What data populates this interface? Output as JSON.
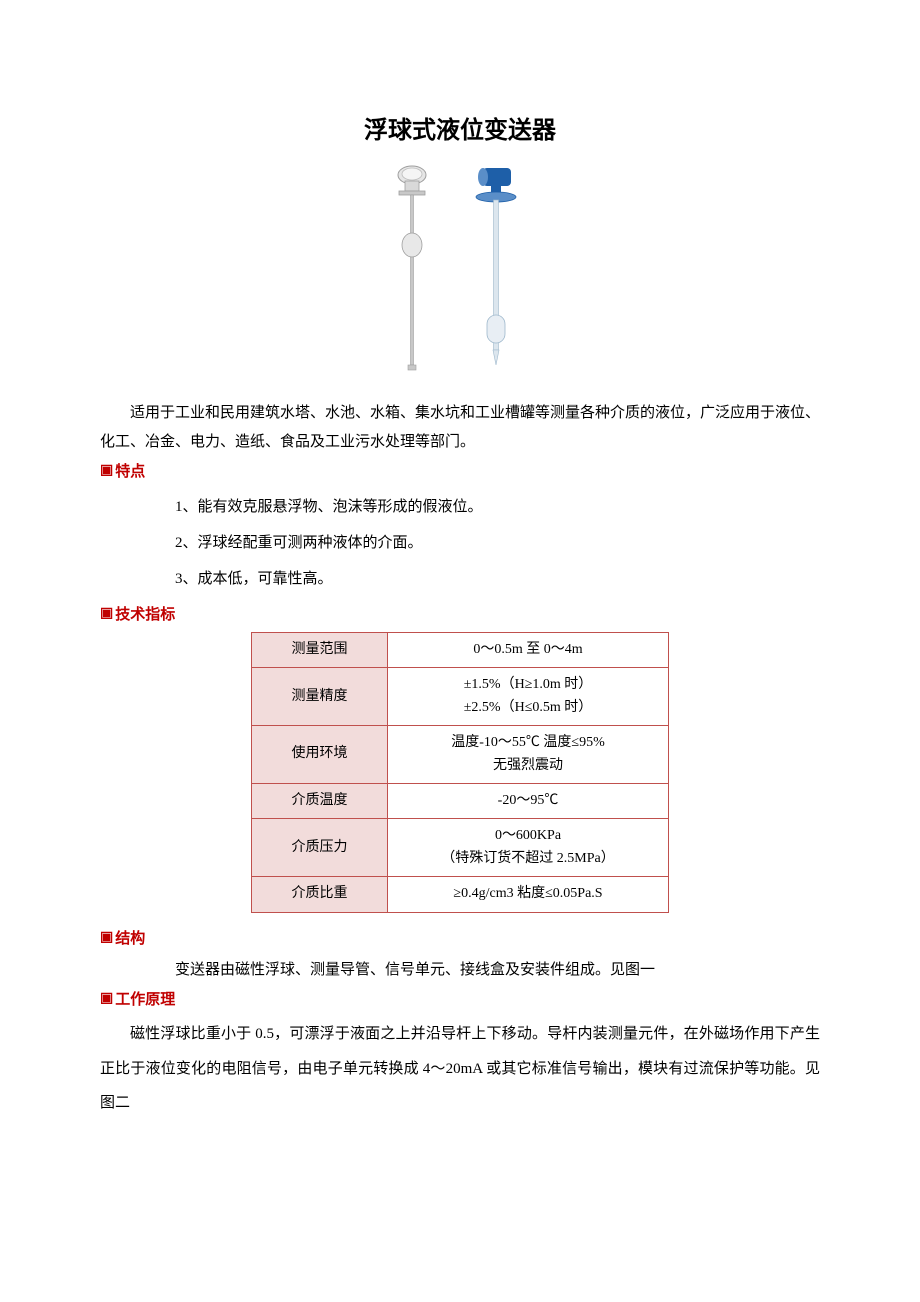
{
  "title": "浮球式液位变送器",
  "intro": "适用于工业和民用建筑水塔、水池、水箱、集水坑和工业槽罐等测量各种介质的液位，广泛应用于液位、化工、冶金、电力、造纸、食品及工业污水处理等部门。",
  "sections": {
    "features": "特点",
    "specs": "技术指标",
    "structure": "结构",
    "principle": "工作原理"
  },
  "marker": "▣",
  "features": [
    "1、能有效克服悬浮物、泡沫等形成的假液位。",
    "2、浮球经配重可测两种液体的介面。",
    "3、成本低，可靠性高。"
  ],
  "spec_table": {
    "border_color": "#c0504d",
    "label_bg": "#f2dcdb",
    "value_bg": "#ffffff",
    "rows": [
      {
        "label": "测量范围",
        "value": "0～0.5m 至 0～4m"
      },
      {
        "label": "测量精度",
        "value": "±1.5%（H≥1.0m 时）\n±2.5%（H≤0.5m 时）"
      },
      {
        "label": "使用环境",
        "value": "温度-10～55℃ 温度≤95%\n无强烈震动"
      },
      {
        "label": "介质温度",
        "value": "-20～95℃"
      },
      {
        "label": "介质压力",
        "value": "0～600KPa\n（特殊订货不超过 2.5MPa）"
      },
      {
        "label": "介质比重",
        "value": "≥0.4g/cm3 粘度≤0.05Pa.S"
      }
    ]
  },
  "structure_text": "变送器由磁性浮球、测量导管、信号单元、接线盒及安装件组成。见图一",
  "principle_text": "磁性浮球比重小于 0.5，可漂浮于液面之上并沿导杆上下移动。导杆内装测量元件，在外磁场作用下产生正比于液位变化的电阻信号，由电子单元转换成 4～20mA 或其它标准信号输出，模块有过流保护等功能。见图二",
  "colors": {
    "heading": "#c00000",
    "text": "#000000",
    "page_bg": "#ffffff",
    "sensor_steel": "#c8c8c8",
    "sensor_steel_dark": "#9e9e9e",
    "sensor_blue": "#1e5fa8",
    "sensor_blue_light": "#5a8ec8"
  }
}
